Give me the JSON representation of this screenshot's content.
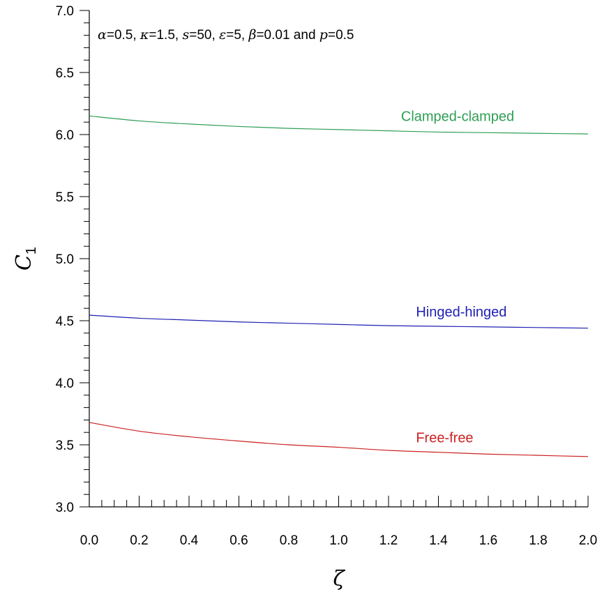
{
  "chart_data": {
    "type": "line",
    "xlabel": "ζ",
    "ylabel": "C1",
    "xlim": [
      0.0,
      2.0
    ],
    "ylim": [
      3.0,
      7.0
    ],
    "x_ticks": [
      "0.0",
      "0.2",
      "0.4",
      "0.6",
      "0.8",
      "1.0",
      "1.2",
      "1.4",
      "1.6",
      "1.8",
      "2.0"
    ],
    "y_ticks": [
      "3.0",
      "3.5",
      "4.0",
      "4.5",
      "5.0",
      "5.5",
      "6.0",
      "6.5",
      "7.0"
    ],
    "grid": false,
    "annotation": {
      "parts": [
        {
          "text": "α",
          "italic": true
        },
        {
          "text": "=0.5, ",
          "italic": false
        },
        {
          "text": "κ",
          "italic": true
        },
        {
          "text": "=1.5, ",
          "italic": false
        },
        {
          "text": "s",
          "italic": true
        },
        {
          "text": "=50, ",
          "italic": false
        },
        {
          "text": "ε",
          "italic": true
        },
        {
          "text": "=5, ",
          "italic": false
        },
        {
          "text": "β",
          "italic": true
        },
        {
          "text": "=0.01 and ",
          "italic": false
        },
        {
          "text": "p",
          "italic": true
        },
        {
          "text": "=0.5",
          "italic": false
        }
      ]
    },
    "x": [
      0.0,
      0.2,
      0.4,
      0.6,
      0.8,
      1.0,
      1.2,
      1.4,
      1.6,
      1.8,
      2.0
    ],
    "series": [
      {
        "name": "Clamped-clamped",
        "color": "#2e9e54",
        "values": [
          6.15,
          6.11,
          6.085,
          6.065,
          6.05,
          6.04,
          6.03,
          6.02,
          6.015,
          6.01,
          6.005
        ]
      },
      {
        "name": "Hinged-hinged",
        "color": "#1f1fb4",
        "values": [
          4.545,
          4.52,
          4.505,
          4.49,
          4.48,
          4.47,
          4.46,
          4.455,
          4.45,
          4.445,
          4.44
        ]
      },
      {
        "name": "Free-free",
        "color": "#cc2222",
        "values": [
          3.68,
          3.61,
          3.565,
          3.53,
          3.5,
          3.48,
          3.455,
          3.44,
          3.425,
          3.415,
          3.405
        ]
      }
    ]
  }
}
